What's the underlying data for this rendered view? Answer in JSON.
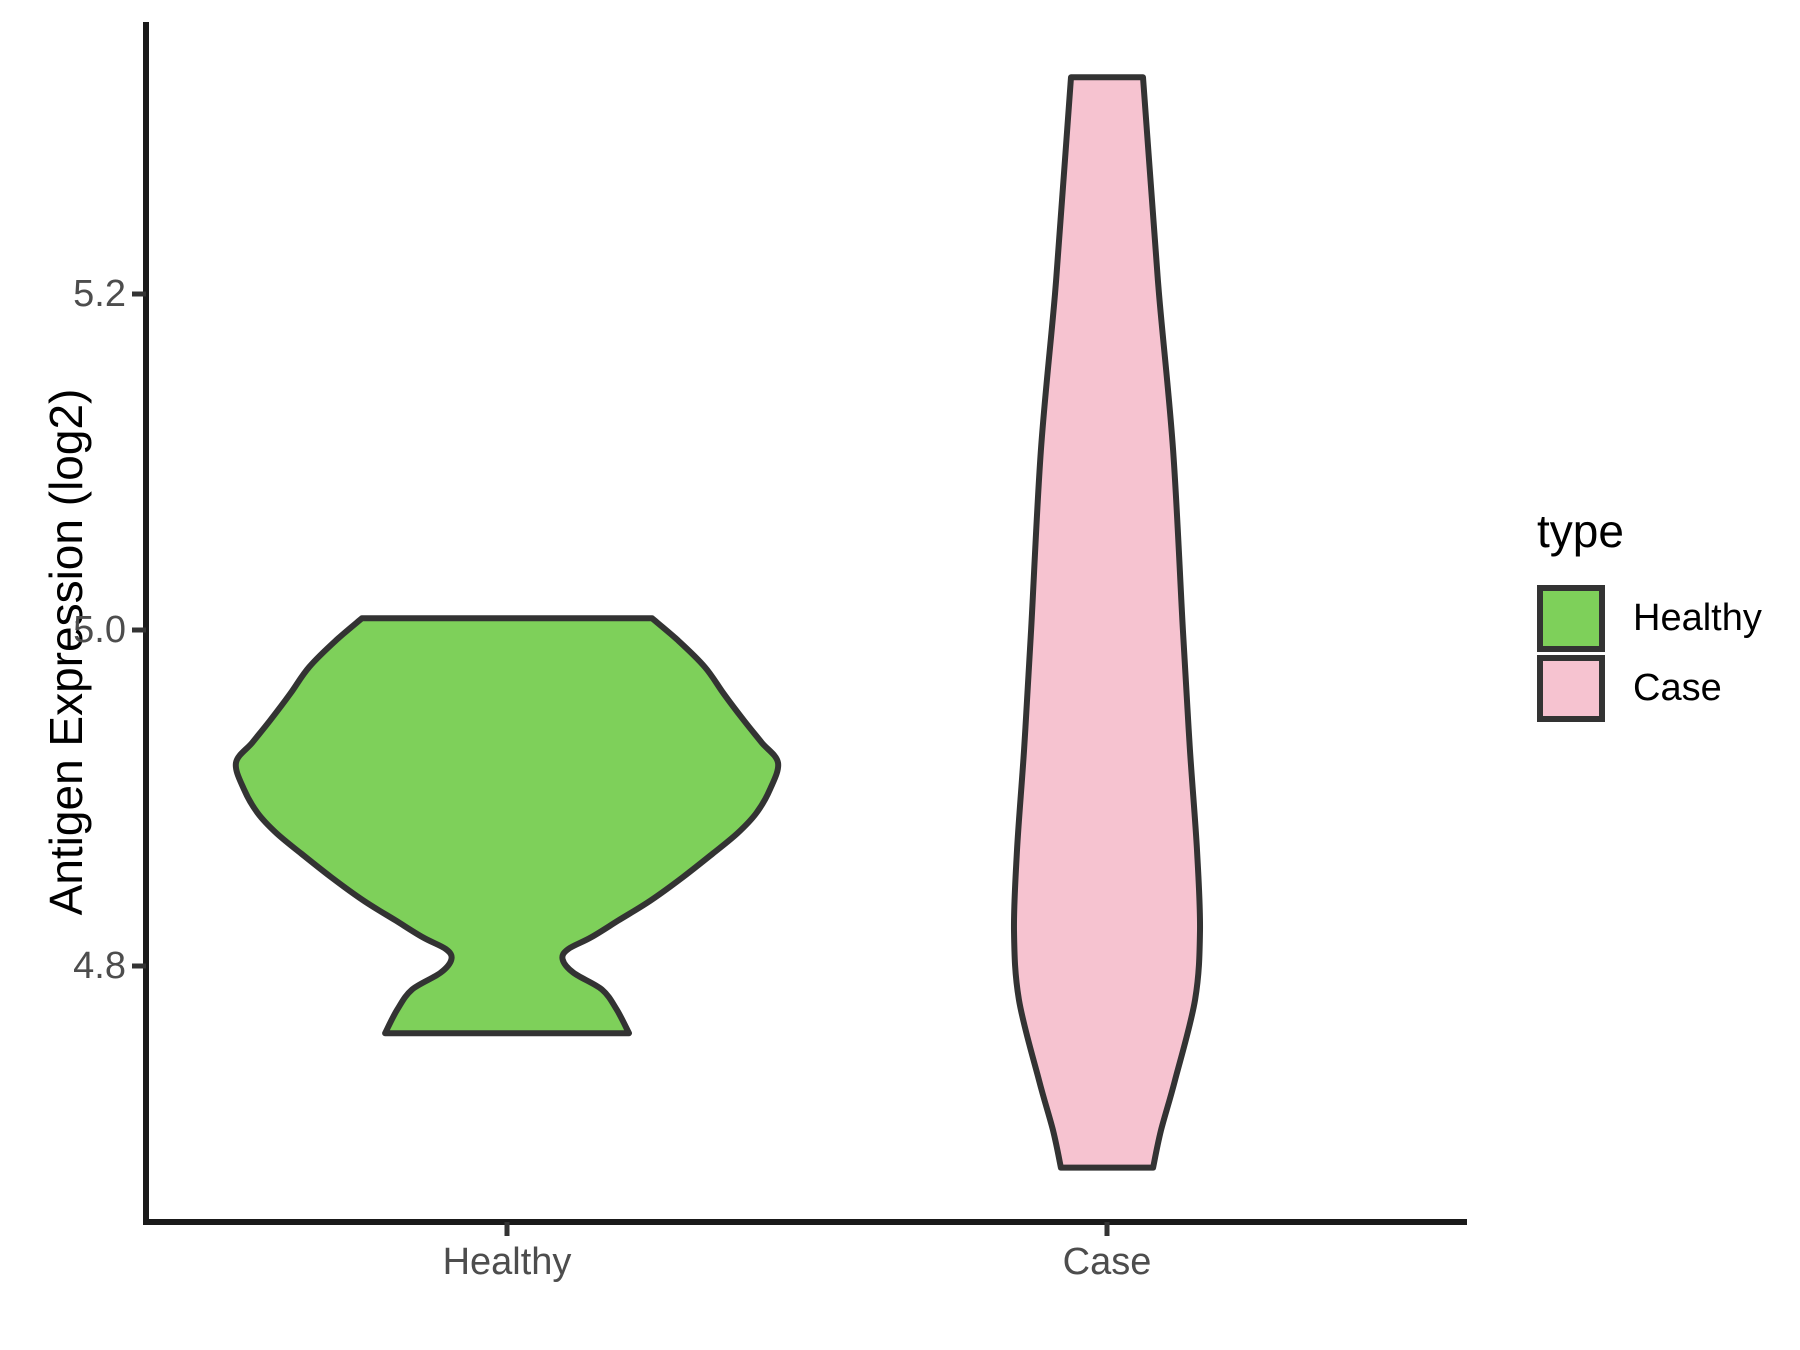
{
  "chart_data": {
    "type": "violin",
    "title": "",
    "xlabel": "",
    "ylabel": "Antigen Expression (log2)",
    "categories": [
      "Healthy",
      "Case"
    ],
    "y_ticks": [
      {
        "value": 5.2,
        "label": "5.2"
      },
      {
        "value": 5.0,
        "label": "5.0"
      },
      {
        "value": 4.8,
        "label": "4.8"
      }
    ],
    "ylim": [
      4.64,
      5.36
    ],
    "grid": "off",
    "legend": {
      "title": "type",
      "position": "right",
      "entries": [
        {
          "label": "Healthy",
          "color": "#7ED05A"
        },
        {
          "label": "Case",
          "color": "#F6C3D0"
        }
      ]
    },
    "series": [
      {
        "name": "Healthy",
        "fill_color": "#7ED05A",
        "value_range": [
          4.76,
          5.007
        ],
        "peak": {
          "value": 4.92,
          "relative_width": 1.0
        },
        "waist": {
          "value": 4.81,
          "relative_width": 0.21
        },
        "profile": [
          [
            5.007,
            0.535
          ],
          [
            4.994,
            0.63
          ],
          [
            4.978,
            0.73
          ],
          [
            4.962,
            0.8
          ],
          [
            4.946,
            0.875
          ],
          [
            4.933,
            0.94
          ],
          [
            4.921,
            1.0
          ],
          [
            4.905,
            0.97
          ],
          [
            4.891,
            0.92
          ],
          [
            4.879,
            0.85
          ],
          [
            4.867,
            0.76
          ],
          [
            4.853,
            0.65
          ],
          [
            4.839,
            0.53
          ],
          [
            4.827,
            0.41
          ],
          [
            4.817,
            0.31
          ],
          [
            4.81,
            0.225
          ],
          [
            4.804,
            0.205
          ],
          [
            4.796,
            0.245
          ],
          [
            4.786,
            0.35
          ],
          [
            4.774,
            0.405
          ],
          [
            4.76,
            0.45
          ]
        ]
      },
      {
        "name": "Case",
        "fill_color": "#F6C3D0",
        "value_range": [
          4.68,
          5.329
        ],
        "peak": {
          "value": 4.82,
          "relative_width": 0.343
        },
        "profile": [
          [
            5.329,
            0.133
          ],
          [
            5.28,
            0.155
          ],
          [
            5.2,
            0.192
          ],
          [
            5.107,
            0.244
          ],
          [
            5.0,
            0.28
          ],
          [
            4.929,
            0.306
          ],
          [
            4.869,
            0.332
          ],
          [
            4.821,
            0.343
          ],
          [
            4.78,
            0.325
          ],
          [
            4.732,
            0.251
          ],
          [
            4.702,
            0.199
          ],
          [
            4.68,
            0.17
          ]
        ]
      }
    ],
    "style": {
      "outline_color": "#333333",
      "axis_line_color": "#1a1a1a",
      "tick_text_color": "#4d4d4d",
      "text_color": "#000000",
      "background": "#ffffff"
    }
  }
}
